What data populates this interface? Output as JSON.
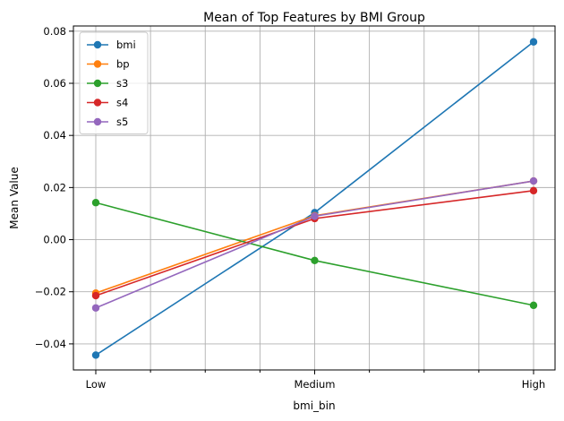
{
  "chart_data": {
    "type": "line",
    "title": "Mean of Top Features by BMI Group",
    "xlabel": "bmi_bin",
    "ylabel": "Mean Value",
    "categories": [
      "Low",
      "Medium",
      "High"
    ],
    "ylim": [
      -0.05,
      0.082
    ],
    "yticks": [
      "−0.04",
      "−0.02",
      "0.00",
      "0.02",
      "0.04",
      "0.06",
      "0.08"
    ],
    "ytick_values": [
      -0.04,
      -0.02,
      0.0,
      0.02,
      0.04,
      0.06,
      0.08
    ],
    "grid": true,
    "legend_position": "upper-left",
    "series": [
      {
        "name": "bmi",
        "color": "#1f77b4",
        "values": [
          -0.0443,
          0.0104,
          0.0759
        ]
      },
      {
        "name": "bp",
        "color": "#ff7f0e",
        "values": [
          -0.0205,
          0.0092,
          0.0225
        ]
      },
      {
        "name": "s3",
        "color": "#2ca02c",
        "values": [
          0.0142,
          -0.008,
          -0.0252
        ]
      },
      {
        "name": "s4",
        "color": "#d62728",
        "values": [
          -0.0215,
          0.0081,
          0.0188
        ]
      },
      {
        "name": "s5",
        "color": "#9467bd",
        "values": [
          -0.0262,
          0.009,
          0.0225
        ]
      }
    ]
  }
}
